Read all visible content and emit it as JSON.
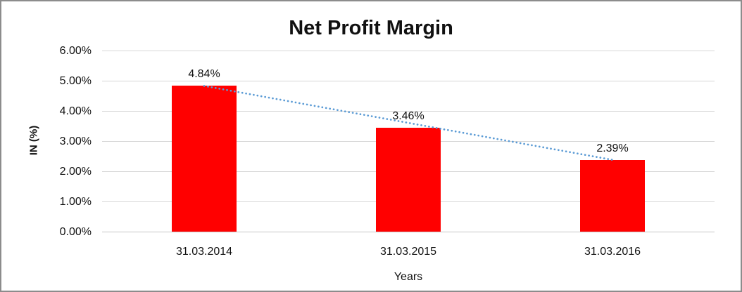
{
  "chart_data": {
    "type": "bar",
    "title": "Net Profit Margin",
    "xlabel": "Years",
    "ylabel": "IN (%)",
    "categories": [
      "31.03.2014",
      "31.03.2015",
      "31.03.2016"
    ],
    "values": [
      4.84,
      3.46,
      2.39
    ],
    "data_labels": [
      "4.84%",
      "3.46%",
      "2.39%"
    ],
    "yticks": [
      "0.00%",
      "1.00%",
      "2.00%",
      "3.00%",
      "4.00%",
      "5.00%",
      "6.00%"
    ],
    "ylim": [
      0,
      6
    ],
    "grid": true,
    "legend": "none",
    "bar_color": "#ff0000",
    "trendline": {
      "type": "linear",
      "style": "dotted",
      "color": "#5b9bd5",
      "from_value": 4.84,
      "to_value": 2.39
    }
  }
}
